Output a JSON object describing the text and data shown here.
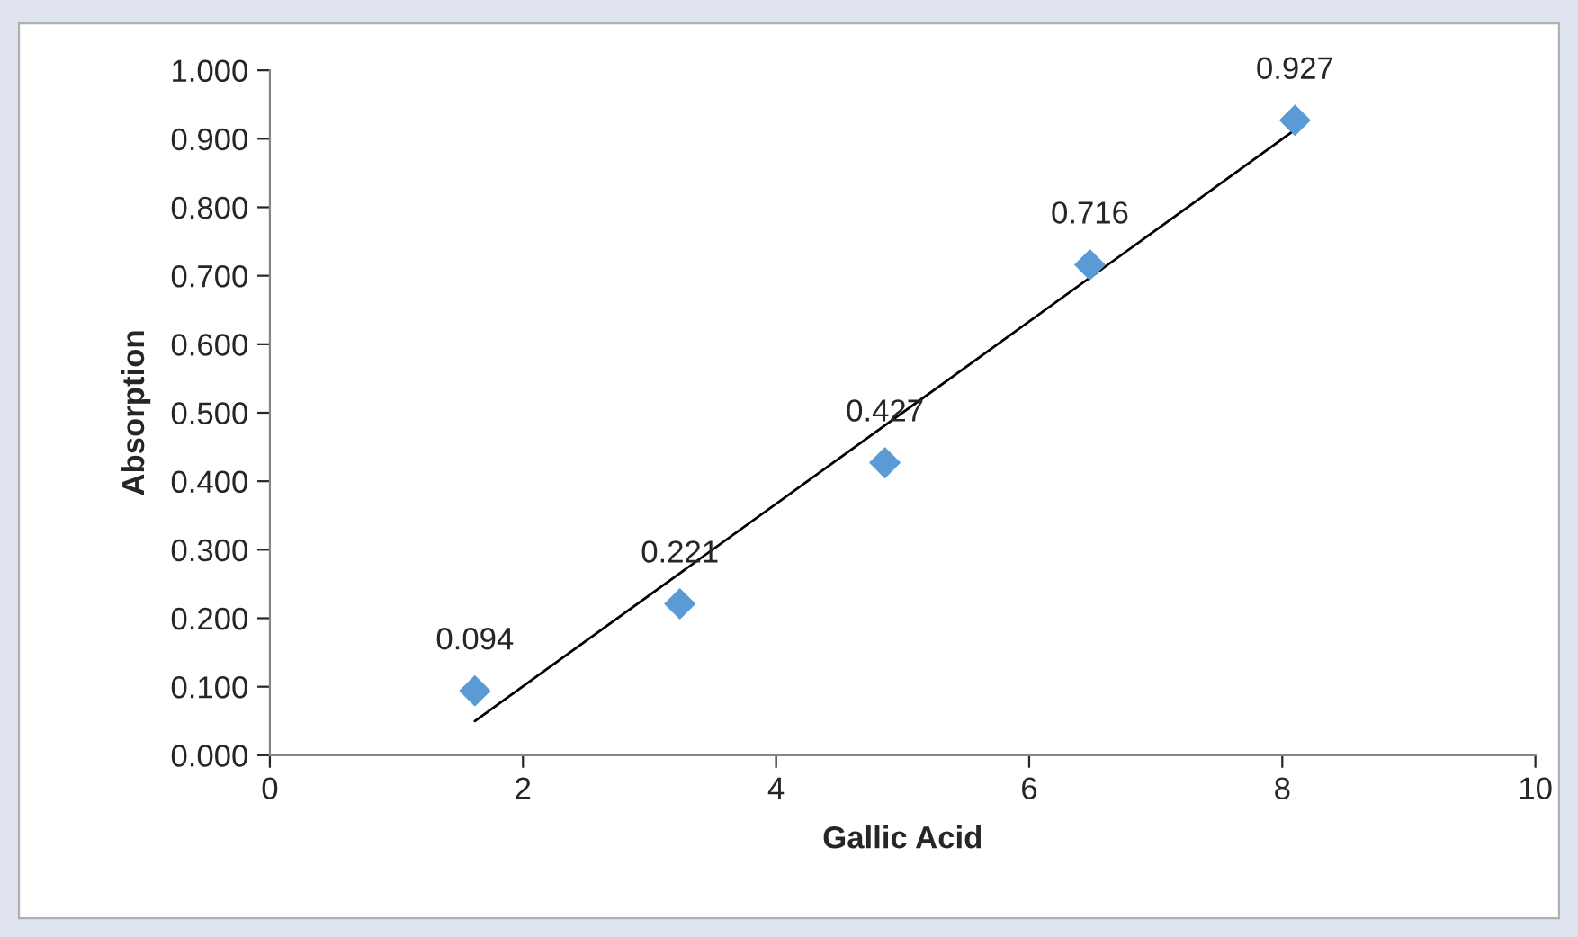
{
  "chart_data": {
    "type": "scatter",
    "xlabel": "Gallic Acid",
    "ylabel": "Absorption",
    "xlim": [
      0,
      10
    ],
    "xticks": [
      0,
      2,
      4,
      6,
      8,
      10
    ],
    "ylim": [
      0,
      1.0
    ],
    "yticks": [
      {
        "value": 0,
        "label": "0.000"
      },
      {
        "value": 0.1,
        "label": "0.100"
      },
      {
        "value": 0.2,
        "label": "0.200"
      },
      {
        "value": 0.3,
        "label": "0.300"
      },
      {
        "value": 0.4,
        "label": "0.400"
      },
      {
        "value": 0.5,
        "label": "0.500"
      },
      {
        "value": 0.6,
        "label": "0.600"
      },
      {
        "value": 0.7,
        "label": "0.700"
      },
      {
        "value": 0.8,
        "label": "0.800"
      },
      {
        "value": 0.9,
        "label": "0.900"
      },
      {
        "value": 1.0,
        "label": "1.000"
      }
    ],
    "grid": false,
    "legend": false,
    "marker": "diamond",
    "series": [
      {
        "color": "#5b9bd5",
        "x": [
          1.62,
          3.24,
          4.86,
          6.48,
          8.1
        ],
        "values": [
          0.094,
          0.221,
          0.427,
          0.716,
          0.927
        ],
        "value_labels": [
          "0.094",
          "0.221",
          "0.427",
          "0.716",
          "0.927"
        ]
      },
      {
        "type": "line",
        "color": "#000000",
        "line_style": "solid",
        "marker": "none",
        "x": [
          1.62,
          8.1
        ],
        "values": [
          0.05,
          0.913
        ]
      }
    ]
  }
}
